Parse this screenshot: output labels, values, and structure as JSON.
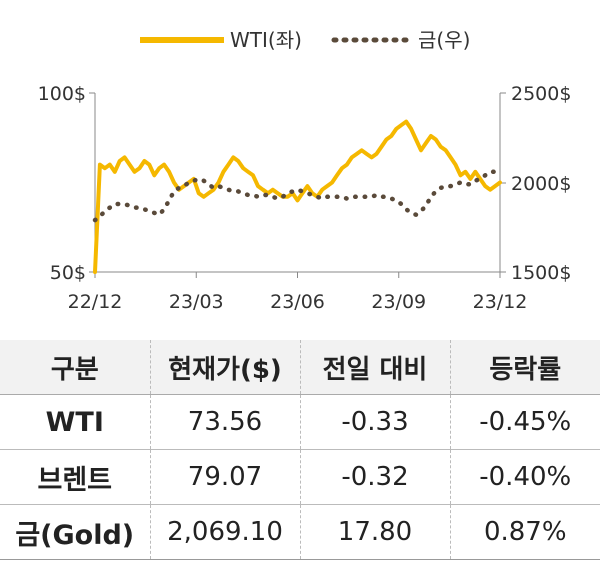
{
  "chart_data": {
    "type": "line",
    "x_ticks": [
      "22/12",
      "23/03",
      "23/06",
      "23/09",
      "23/12"
    ],
    "left_axis": {
      "ticks": [
        "100$",
        "50$"
      ],
      "range": [
        50,
        100
      ]
    },
    "right_axis": {
      "ticks": [
        "2500$",
        "2000$",
        "1500$"
      ],
      "range": [
        1500,
        2500
      ]
    },
    "legend_placement": "top",
    "series": [
      {
        "name": "WTI(좌)",
        "axis": "left",
        "color": "#f5b800",
        "style": "solid",
        "values": [
          50,
          80,
          79,
          80,
          78,
          81,
          82,
          80,
          78,
          79,
          81,
          80,
          77,
          79,
          80,
          78,
          75,
          73,
          74,
          75,
          76,
          72,
          71,
          72,
          73,
          75,
          78,
          80,
          82,
          81,
          79,
          78,
          77,
          74,
          73,
          72,
          73,
          72,
          71,
          71,
          72,
          70,
          72,
          74,
          72,
          71,
          73,
          74,
          75,
          77,
          79,
          80,
          82,
          83,
          84,
          83,
          82,
          83,
          85,
          87,
          88,
          90,
          91,
          92,
          90,
          87,
          84,
          86,
          88,
          87,
          85,
          84,
          82,
          80,
          77,
          78,
          76,
          78,
          76,
          74,
          73,
          74,
          75
        ]
      },
      {
        "name": "금(우)",
        "axis": "right",
        "color": "#5a4a3a",
        "style": "dotted",
        "values": [
          1790,
          1810,
          1840,
          1860,
          1880,
          1880,
          1880,
          1870,
          1860,
          1860,
          1850,
          1840,
          1830,
          1820,
          1850,
          1900,
          1950,
          1970,
          1980,
          2000,
          2010,
          2020,
          2010,
          1990,
          1970,
          1980,
          1970,
          1960,
          1950,
          1950,
          1940,
          1930,
          1930,
          1920,
          1930,
          1930,
          1920,
          1910,
          1920,
          1940,
          1950,
          1960,
          1950,
          1940,
          1930,
          1920,
          1910,
          1920,
          1920,
          1920,
          1920,
          1910,
          1920,
          1920,
          1920,
          1920,
          1920,
          1930,
          1920,
          1920,
          1910,
          1900,
          1880,
          1850,
          1830,
          1820,
          1840,
          1870,
          1920,
          1950,
          1970,
          1980,
          1980,
          1990,
          2000,
          1990,
          1990,
          2010,
          2020,
          2040,
          2060,
          2060,
          2070
        ]
      }
    ]
  },
  "table": {
    "headers": [
      "구분",
      "현재가($)",
      "전일 대비",
      "등락률"
    ],
    "rows": [
      [
        "WTI",
        "73.56",
        "-0.33",
        "-0.45%"
      ],
      [
        "브렌트",
        "79.07",
        "-0.32",
        "-0.40%"
      ],
      [
        "금(Gold)",
        "2,069.10",
        "17.80",
        "0.87%"
      ]
    ]
  }
}
